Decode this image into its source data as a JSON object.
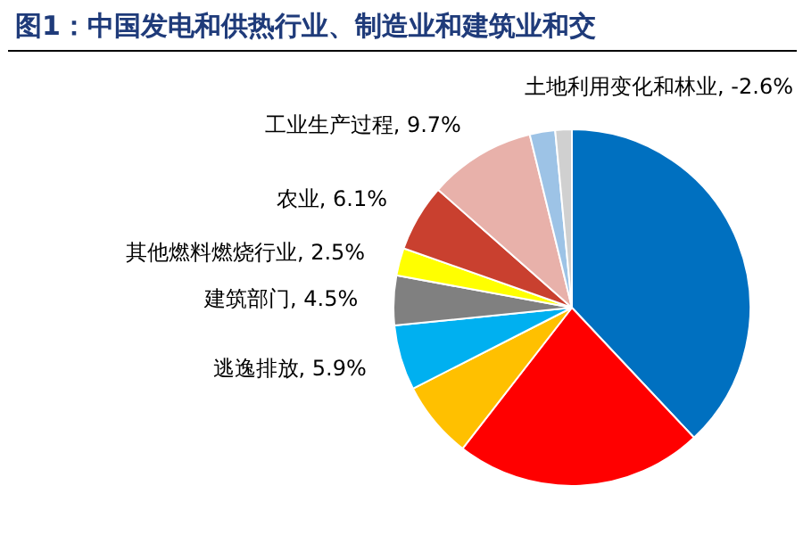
{
  "chart_data": {
    "type": "pie",
    "title": "图1：中国发电和供热行业、制造业和建筑业和交",
    "categories": [
      null,
      null,
      null,
      "逃逸排放",
      "建筑部门",
      "其他燃料燃烧行业",
      "农业",
      "工业生产过程",
      null,
      null
    ],
    "values": [
      38,
      22.5,
      7,
      5.9,
      4.5,
      2.5,
      6.1,
      9.7,
      2.3,
      1.5
    ],
    "colors": [
      "#0070c0",
      "#ff0000",
      "#ffc000",
      "#00b0f0",
      "#808080",
      "#ffff00",
      "#c9402f",
      "#e8b1aa",
      "#9dc3e6",
      "#d0d0d0"
    ],
    "value_labels": [
      null,
      null,
      null,
      "5.9%",
      "4.5%",
      "2.5%",
      "6.1%",
      "9.7%",
      null,
      null
    ],
    "annotations": [
      "土地利用变化和林业, -2.6%"
    ]
  }
}
